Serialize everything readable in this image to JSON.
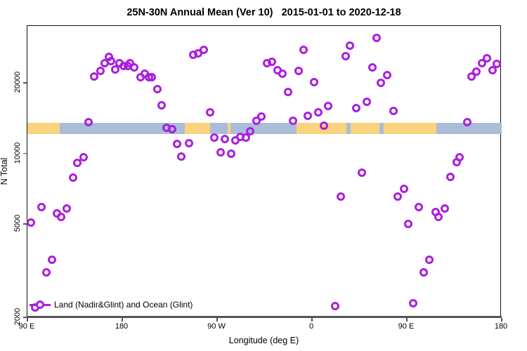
{
  "chart_data": {
    "type": "scatter",
    "title": "25N-30N Annual Mean (Ver 10)   2015-01-01 to 2020-12-18",
    "xlabel": "Longitude (deg E)",
    "ylabel": "N Total",
    "legend_label": "Land (Nadir&Glint) and Ocean (Glint)",
    "marker_color": "#AB1FDD",
    "background_color": "#ffffff",
    "x_axis": {
      "min": 90,
      "max": 540,
      "note": "longitude axis wraps eastward: 90E to 180, 90W, 0, 90E, 180",
      "ticks": [
        {
          "pos": 90,
          "label": "90 E"
        },
        {
          "pos": 180,
          "label": "180"
        },
        {
          "pos": 270,
          "label": "90 W"
        },
        {
          "pos": 360,
          "label": "0"
        },
        {
          "pos": 450,
          "label": "90 E"
        },
        {
          "pos": 540,
          "label": "180"
        }
      ]
    },
    "y_axis": {
      "scale": "log",
      "min": 2000,
      "max": 35000,
      "ticks": [
        {
          "value": 2000,
          "label": "2000"
        },
        {
          "value": 5000,
          "label": "5000"
        },
        {
          "value": 10000,
          "label": "10000"
        },
        {
          "value": 20000,
          "label": "20000"
        }
      ]
    },
    "map_band": {
      "description": "horizontal strip map of 25N-30N latitude band: land vs ocean",
      "value_top": 13500,
      "value_bottom": 12100,
      "land_color": "#FBD27E",
      "ocean_color": "#A9BDD9",
      "segments": [
        {
          "type": "land",
          "from": 90,
          "to": 120.5
        },
        {
          "type": "ocean",
          "from": 120.5,
          "to": 239
        },
        {
          "type": "land",
          "from": 239,
          "to": 263
        },
        {
          "type": "ocean",
          "from": 263,
          "to": 280
        },
        {
          "type": "land",
          "from": 280,
          "to": 282.5
        },
        {
          "type": "ocean",
          "from": 282.5,
          "to": 345.5
        },
        {
          "type": "land",
          "from": 345.5,
          "to": 392.5
        },
        {
          "type": "ocean",
          "from": 392.5,
          "to": 396.5
        },
        {
          "type": "land",
          "from": 396.5,
          "to": 424
        },
        {
          "type": "ocean",
          "from": 424,
          "to": 428
        },
        {
          "type": "land",
          "from": 428,
          "to": 478
        },
        {
          "type": "ocean",
          "from": 478,
          "to": 540
        }
      ]
    },
    "points": [
      [
        93,
        5080
      ],
      [
        97,
        2200
      ],
      [
        103,
        5920
      ],
      [
        108,
        3110
      ],
      [
        113,
        3520
      ],
      [
        118,
        5560
      ],
      [
        122,
        5370
      ],
      [
        127,
        5830
      ],
      [
        133,
        7870
      ],
      [
        137,
        9100
      ],
      [
        143,
        9620
      ],
      [
        148,
        13600
      ],
      [
        153,
        21300
      ],
      [
        159,
        22500
      ],
      [
        163,
        24300
      ],
      [
        167,
        25800
      ],
      [
        169,
        24800
      ],
      [
        173,
        22800
      ],
      [
        177,
        24300
      ],
      [
        181,
        23600
      ],
      [
        185,
        23700
      ],
      [
        187,
        24300
      ],
      [
        191,
        23300
      ],
      [
        197,
        21100
      ],
      [
        201,
        21900
      ],
      [
        205,
        21100
      ],
      [
        208,
        21100
      ],
      [
        213,
        18800
      ],
      [
        217,
        16000
      ],
      [
        222,
        12900
      ],
      [
        227,
        12700
      ],
      [
        232,
        11000
      ],
      [
        236,
        9680
      ],
      [
        243,
        11100
      ],
      [
        247,
        26400
      ],
      [
        252,
        26700
      ],
      [
        257,
        27700
      ],
      [
        263,
        15000
      ],
      [
        267,
        11700
      ],
      [
        273,
        10100
      ],
      [
        277,
        11500
      ],
      [
        283,
        9950
      ],
      [
        287,
        11400
      ],
      [
        292,
        11800
      ],
      [
        297,
        11700
      ],
      [
        301,
        12400
      ],
      [
        307,
        13800
      ],
      [
        312,
        14400
      ],
      [
        317,
        24300
      ],
      [
        322,
        24600
      ],
      [
        327,
        22700
      ],
      [
        332,
        21900
      ],
      [
        337,
        18300
      ],
      [
        342,
        13800
      ],
      [
        347,
        22500
      ],
      [
        352,
        27700
      ],
      [
        356,
        14500
      ],
      [
        362,
        20100
      ],
      [
        366,
        15000
      ],
      [
        371,
        13100
      ],
      [
        375,
        15900
      ],
      [
        382,
        2230
      ],
      [
        387,
        6570
      ],
      [
        392,
        26000
      ],
      [
        396,
        28800
      ],
      [
        402,
        15600
      ],
      [
        407,
        8260
      ],
      [
        412,
        16600
      ],
      [
        417,
        23300
      ],
      [
        421,
        31100
      ],
      [
        425,
        20000
      ],
      [
        431,
        21600
      ],
      [
        437,
        15200
      ],
      [
        441,
        6570
      ],
      [
        447,
        7050
      ],
      [
        451,
        5010
      ],
      [
        456,
        2300
      ],
      [
        461,
        5920
      ],
      [
        466,
        3110
      ],
      [
        471,
        3520
      ],
      [
        477,
        5640
      ],
      [
        480,
        5370
      ],
      [
        486,
        5830
      ],
      [
        491,
        7930
      ],
      [
        497,
        9160
      ],
      [
        500,
        9620
      ],
      [
        507,
        13600
      ],
      [
        511,
        21300
      ],
      [
        516,
        22300
      ],
      [
        521,
        24300
      ],
      [
        526,
        25500
      ],
      [
        531,
        22700
      ],
      [
        535,
        24100
      ]
    ]
  }
}
